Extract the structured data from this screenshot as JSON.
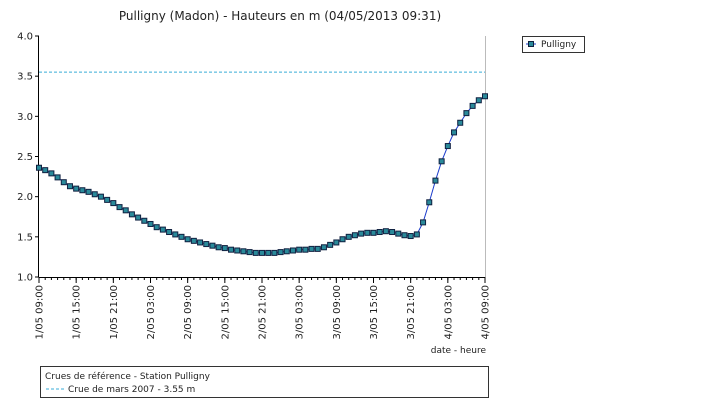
{
  "chart_data": {
    "type": "line",
    "title": "Pulligny (Madon) - Hauteurs en m (04/05/2013 09:31)",
    "x_label": "date - heure",
    "x": [
      "1/05 09:00",
      "1/05 10:00",
      "1/05 11:00",
      "1/05 12:00",
      "1/05 13:00",
      "1/05 14:00",
      "1/05 15:00",
      "1/05 16:00",
      "1/05 17:00",
      "1/05 18:00",
      "1/05 19:00",
      "1/05 20:00",
      "1/05 21:00",
      "1/05 22:00",
      "1/05 23:00",
      "2/05 00:00",
      "2/05 01:00",
      "2/05 02:00",
      "2/05 03:00",
      "2/05 04:00",
      "2/05 05:00",
      "2/05 06:00",
      "2/05 07:00",
      "2/05 08:00",
      "2/05 09:00",
      "2/05 10:00",
      "2/05 11:00",
      "2/05 12:00",
      "2/05 13:00",
      "2/05 14:00",
      "2/05 15:00",
      "2/05 16:00",
      "2/05 17:00",
      "2/05 18:00",
      "2/05 19:00",
      "2/05 20:00",
      "2/05 21:00",
      "2/05 22:00",
      "2/05 23:00",
      "3/05 00:00",
      "3/05 01:00",
      "3/05 02:00",
      "3/05 03:00",
      "3/05 04:00",
      "3/05 05:00",
      "3/05 06:00",
      "3/05 07:00",
      "3/05 08:00",
      "3/05 09:00",
      "3/05 10:00",
      "3/05 11:00",
      "3/05 12:00",
      "3/05 13:00",
      "3/05 14:00",
      "3/05 15:00",
      "3/05 16:00",
      "3/05 17:00",
      "3/05 18:00",
      "3/05 19:00",
      "3/05 20:00",
      "3/05 21:00",
      "3/05 22:00",
      "3/05 23:00",
      "4/05 00:00",
      "4/05 01:00",
      "4/05 02:00",
      "4/05 03:00",
      "4/05 04:00",
      "4/05 05:00",
      "4/05 06:00",
      "4/05 07:00",
      "4/05 08:00",
      "4/05 09:00"
    ],
    "series": [
      {
        "name": "Pulligny",
        "color": "#1a3bcc",
        "marker_color": "#2a8a9a",
        "values": [
          2.36,
          2.33,
          2.29,
          2.24,
          2.18,
          2.13,
          2.1,
          2.08,
          2.06,
          2.03,
          2.0,
          1.96,
          1.92,
          1.87,
          1.83,
          1.78,
          1.74,
          1.7,
          1.66,
          1.62,
          1.59,
          1.56,
          1.53,
          1.5,
          1.47,
          1.45,
          1.43,
          1.41,
          1.39,
          1.37,
          1.36,
          1.34,
          1.33,
          1.32,
          1.31,
          1.3,
          1.3,
          1.3,
          1.3,
          1.31,
          1.32,
          1.33,
          1.34,
          1.34,
          1.35,
          1.35,
          1.37,
          1.4,
          1.43,
          1.47,
          1.5,
          1.52,
          1.54,
          1.55,
          1.55,
          1.56,
          1.57,
          1.56,
          1.54,
          1.52,
          1.51,
          1.53,
          1.68,
          1.93,
          2.2,
          2.44,
          2.63,
          2.8,
          2.92,
          3.04,
          3.13,
          3.2,
          3.25
        ]
      }
    ],
    "xlim": [
      "1/05 09:00",
      "4/05 09:00"
    ],
    "xticks": [
      "1/05 09:00",
      "1/05 15:00",
      "1/05 21:00",
      "2/05 03:00",
      "2/05 09:00",
      "2/05 15:00",
      "2/05 21:00",
      "3/05 03:00",
      "3/05 09:00",
      "3/05 15:00",
      "3/05 21:00",
      "4/05 03:00",
      "4/05 09:00"
    ],
    "ylim": [
      1,
      4
    ],
    "yticks": [
      {
        "value": 1,
        "label": "1.0"
      },
      {
        "value": 1.5,
        "label": "1.5"
      },
      {
        "value": 2,
        "label": "2.0"
      },
      {
        "value": 2.5,
        "label": "2.5"
      },
      {
        "value": 3,
        "label": "3.0"
      },
      {
        "value": 3.5,
        "label": "3.5"
      },
      {
        "value": 4,
        "label": "4.0"
      }
    ],
    "reference_title": "Crues de référence - Station Pulligny",
    "reference_lines": [
      {
        "name": "Crue de mars 2007 - 3.55 m",
        "value": 3.55,
        "color": "#3aaed8"
      }
    ],
    "legend": "top-right"
  }
}
